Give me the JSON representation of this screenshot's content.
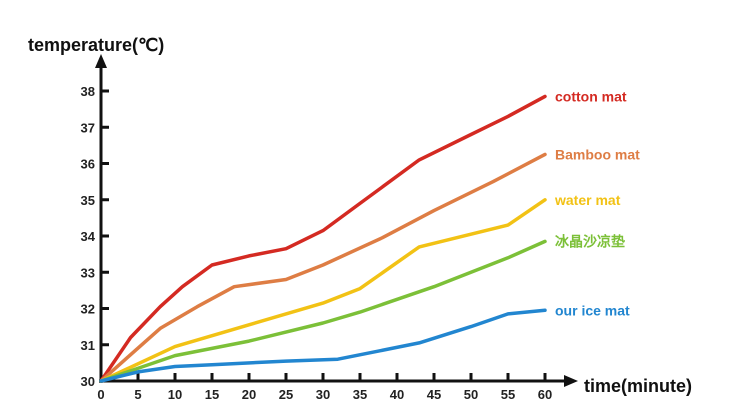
{
  "chart_data": {
    "type": "line",
    "title": "",
    "xlabel": "time(minute)",
    "ylabel": "temperature(℃)",
    "xlim": [
      0,
      60
    ],
    "ylim": [
      30,
      38
    ],
    "grid": false,
    "x_ticks": [
      0,
      5,
      10,
      15,
      20,
      25,
      30,
      35,
      40,
      45,
      50,
      55,
      60
    ],
    "y_ticks": [
      30,
      31,
      32,
      33,
      34,
      35,
      36,
      37,
      38
    ],
    "series": [
      {
        "name": "cotton mat",
        "color": "#d42a22",
        "points": [
          [
            0,
            30
          ],
          [
            4,
            31.2
          ],
          [
            8,
            32.05
          ],
          [
            11,
            32.6
          ],
          [
            15,
            33.2
          ],
          [
            20,
            33.45
          ],
          [
            25,
            33.65
          ],
          [
            30,
            34.15
          ],
          [
            35,
            34.9
          ],
          [
            43,
            36.1
          ],
          [
            50,
            36.8
          ],
          [
            55,
            37.3
          ],
          [
            60,
            37.85
          ]
        ]
      },
      {
        "name": "Bamboo mat",
        "color": "#de7d44",
        "points": [
          [
            0,
            30
          ],
          [
            8,
            31.45
          ],
          [
            13,
            32.05
          ],
          [
            18,
            32.6
          ],
          [
            25,
            32.8
          ],
          [
            30,
            33.2
          ],
          [
            38,
            33.95
          ],
          [
            45,
            34.7
          ],
          [
            53,
            35.5
          ],
          [
            60,
            36.25
          ]
        ]
      },
      {
        "name": "water mat",
        "color": "#f2c215",
        "points": [
          [
            0,
            30
          ],
          [
            10,
            30.95
          ],
          [
            20,
            31.55
          ],
          [
            30,
            32.15
          ],
          [
            35,
            32.55
          ],
          [
            43,
            33.7
          ],
          [
            50,
            34.05
          ],
          [
            55,
            34.3
          ],
          [
            60,
            35
          ]
        ]
      },
      {
        "name": "冰晶沙凉垫",
        "color": "#7cc038",
        "points": [
          [
            0,
            30
          ],
          [
            10,
            30.7
          ],
          [
            20,
            31.1
          ],
          [
            30,
            31.6
          ],
          [
            35,
            31.9
          ],
          [
            45,
            32.6
          ],
          [
            55,
            33.4
          ],
          [
            60,
            33.85
          ]
        ]
      },
      {
        "name": "our ice mat",
        "color": "#2286d0",
        "points": [
          [
            0,
            30
          ],
          [
            5,
            30.25
          ],
          [
            10,
            30.4
          ],
          [
            15,
            30.45
          ],
          [
            25,
            30.55
          ],
          [
            32,
            30.6
          ],
          [
            43,
            31.05
          ],
          [
            50,
            31.5
          ],
          [
            55,
            31.85
          ],
          [
            60,
            31.95
          ]
        ]
      }
    ]
  }
}
